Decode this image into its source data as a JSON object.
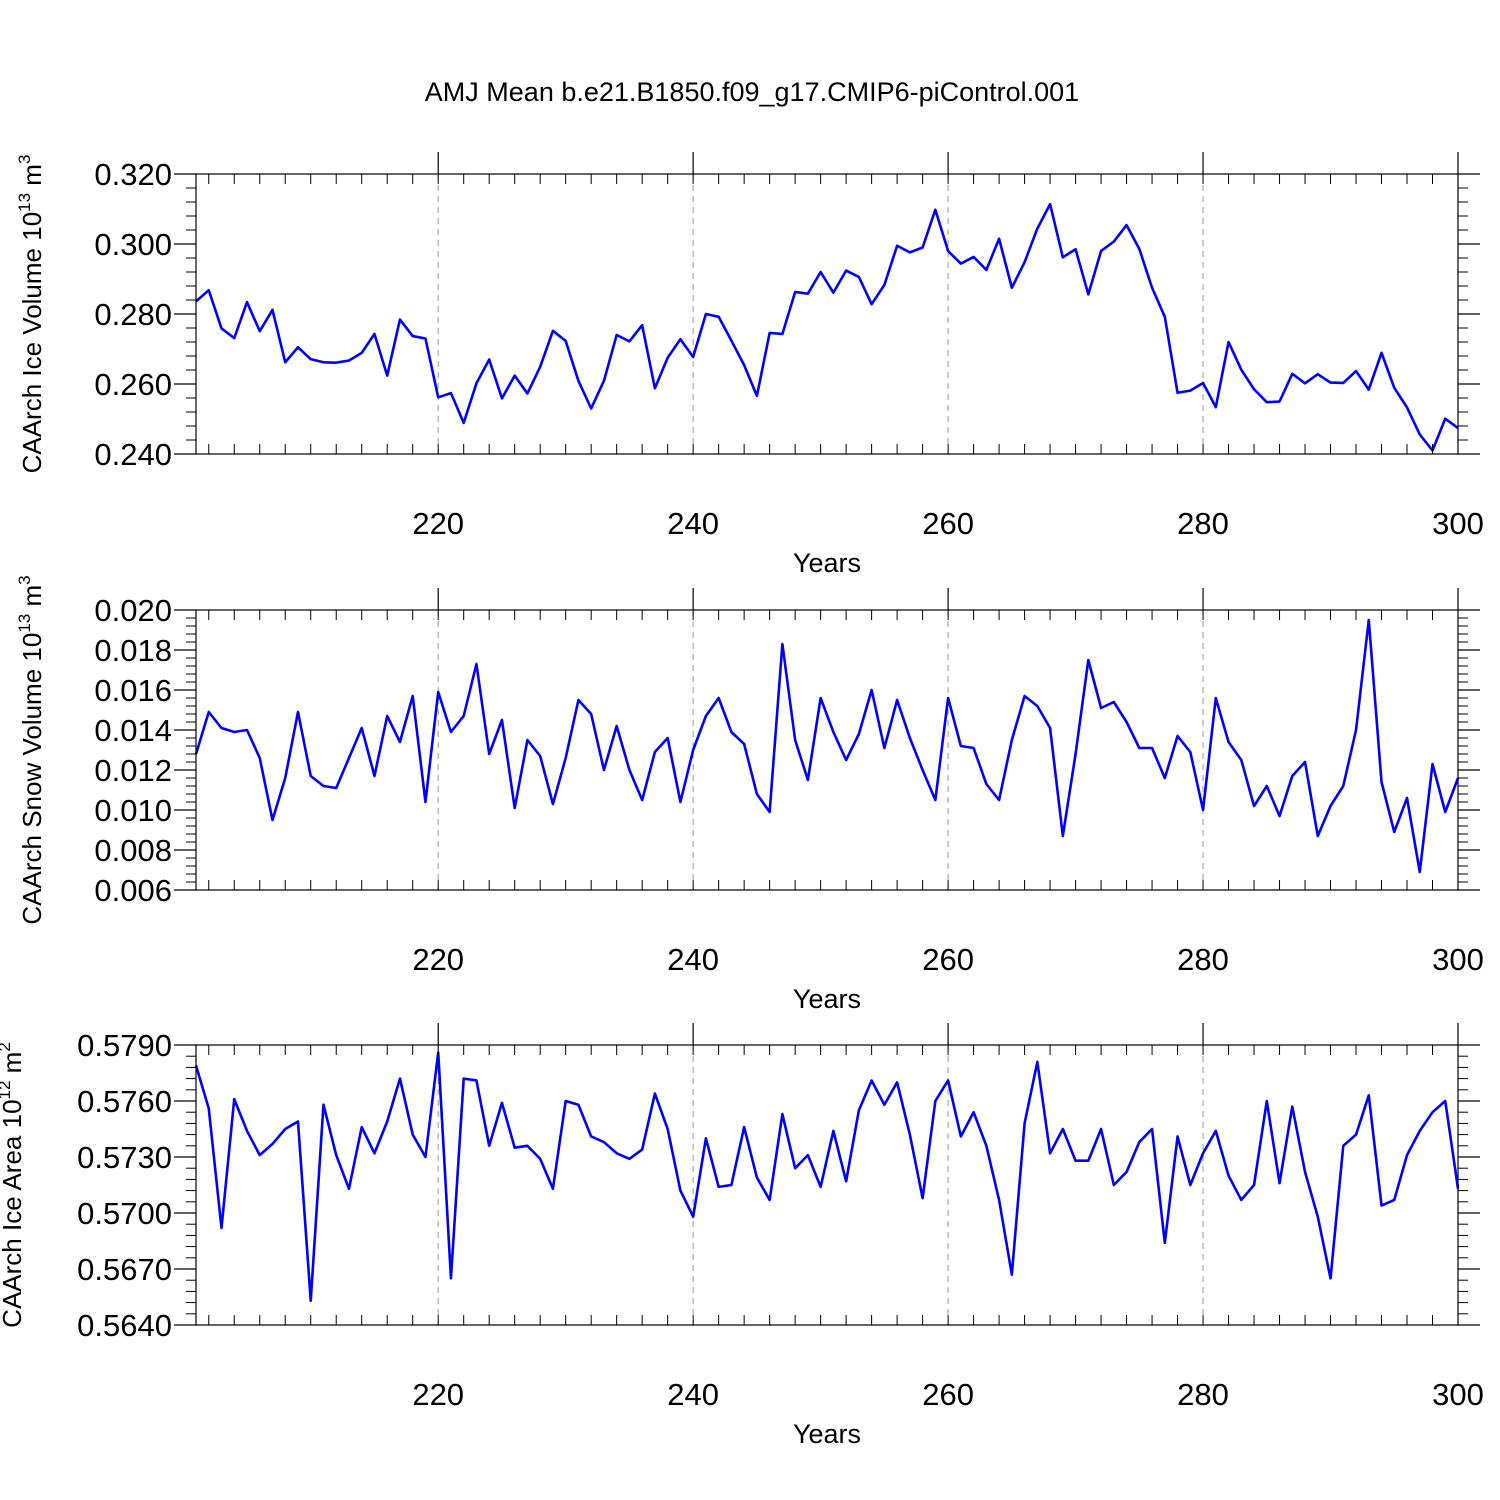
{
  "title": "AMJ Mean b.e21.B1850.f09_g17.CMIP6-piControl.001",
  "colors": {
    "series": "#0000ff",
    "axis": "#000000",
    "grid": "#999999",
    "background": "#ffffff"
  },
  "chart_data": [
    {
      "type": "line",
      "ylabel": "CAArch Ice Volume 10",
      "ylabel_exp": "13",
      "ylabel_unit": " m",
      "ylabel_unit_exp": "3",
      "xlabel": "Years",
      "xlim": [
        201,
        300
      ],
      "ylim": [
        0.24,
        0.32
      ],
      "x_ticks": [
        220,
        240,
        260,
        280,
        300
      ],
      "y_ticks": [
        0.24,
        0.26,
        0.28,
        0.3,
        0.32
      ],
      "y_tick_labels": [
        "0.240",
        "0.260",
        "0.280",
        "0.300",
        "0.320"
      ],
      "y_minor_step": 0.004,
      "x_minor_step": 2,
      "grid": "vertical dashed at major x ticks",
      "x_start": 201,
      "x_step": 1,
      "values": [
        0.2836,
        0.2868,
        0.2759,
        0.2731,
        0.2834,
        0.2751,
        0.2812,
        0.2662,
        0.2705,
        0.2671,
        0.2662,
        0.2661,
        0.2667,
        0.2689,
        0.2743,
        0.2624,
        0.2784,
        0.2737,
        0.273,
        0.2562,
        0.2574,
        0.2489,
        0.2602,
        0.267,
        0.2559,
        0.2624,
        0.2573,
        0.2649,
        0.2752,
        0.2723,
        0.2609,
        0.253,
        0.2609,
        0.274,
        0.2722,
        0.2768,
        0.2588,
        0.2675,
        0.2728,
        0.2677,
        0.28,
        0.2792,
        0.2724,
        0.2654,
        0.2566,
        0.2746,
        0.2743,
        0.2863,
        0.2858,
        0.292,
        0.2861,
        0.2924,
        0.2906,
        0.2828,
        0.2883,
        0.2995,
        0.2976,
        0.299,
        0.3098,
        0.298,
        0.2944,
        0.2963,
        0.2926,
        0.3015,
        0.2875,
        0.2948,
        0.3044,
        0.3114,
        0.2962,
        0.2985,
        0.2856,
        0.298,
        0.3007,
        0.3054,
        0.2986,
        0.2875,
        0.2792,
        0.2575,
        0.2581,
        0.2603,
        0.2534,
        0.272,
        0.2641,
        0.2585,
        0.2548,
        0.255,
        0.2629,
        0.2602,
        0.2628,
        0.2604,
        0.2603,
        0.2637,
        0.2584,
        0.2689,
        0.2589,
        0.2533,
        0.2456,
        0.241,
        0.2501,
        0.2474
      ]
    },
    {
      "type": "line",
      "ylabel": "CAArch Snow Volume 10",
      "ylabel_exp": "13",
      "ylabel_unit": " m",
      "ylabel_unit_exp": "3",
      "xlabel": "Years",
      "xlim": [
        201,
        300
      ],
      "ylim": [
        0.006,
        0.02
      ],
      "x_ticks": [
        220,
        240,
        260,
        280,
        300
      ],
      "y_ticks": [
        0.006,
        0.008,
        0.01,
        0.012,
        0.014,
        0.016,
        0.018,
        0.02
      ],
      "y_tick_labels": [
        "0.006",
        "0.008",
        "0.010",
        "0.012",
        "0.014",
        "0.016",
        "0.018",
        "0.020"
      ],
      "y_minor_step": 0.0004,
      "x_minor_step": 2,
      "grid": "vertical dashed at major x ticks",
      "x_start": 201,
      "x_step": 1,
      "values": [
        0.0128,
        0.0149,
        0.0141,
        0.0139,
        0.014,
        0.0126,
        0.0095,
        0.0116,
        0.0149,
        0.0117,
        0.0112,
        0.0111,
        0.0126,
        0.0141,
        0.0117,
        0.0147,
        0.0134,
        0.0157,
        0.0104,
        0.0159,
        0.0139,
        0.0147,
        0.0173,
        0.0128,
        0.0145,
        0.0101,
        0.0135,
        0.0127,
        0.0103,
        0.0126,
        0.0155,
        0.0148,
        0.012,
        0.0142,
        0.012,
        0.0105,
        0.0129,
        0.0136,
        0.0104,
        0.013,
        0.0147,
        0.0156,
        0.0139,
        0.0133,
        0.0108,
        0.0099,
        0.0183,
        0.0135,
        0.0115,
        0.0156,
        0.0139,
        0.0125,
        0.0138,
        0.016,
        0.0131,
        0.0155,
        0.0136,
        0.012,
        0.0105,
        0.0156,
        0.0132,
        0.0131,
        0.0113,
        0.0105,
        0.0135,
        0.0157,
        0.0152,
        0.0141,
        0.0087,
        0.0128,
        0.0175,
        0.0151,
        0.0154,
        0.0144,
        0.0131,
        0.0131,
        0.0116,
        0.0137,
        0.0129,
        0.01,
        0.0156,
        0.0134,
        0.0125,
        0.0102,
        0.0112,
        0.0097,
        0.0117,
        0.0124,
        0.0087,
        0.0102,
        0.0112,
        0.014,
        0.0195,
        0.0114,
        0.0089,
        0.0106,
        0.0069,
        0.0123,
        0.0099,
        0.0116
      ]
    },
    {
      "type": "line",
      "ylabel": "CAArch Ice Area 10",
      "ylabel_exp": "12",
      "ylabel_unit": " m",
      "ylabel_unit_exp": "2",
      "xlabel": "Years",
      "xlim": [
        201,
        300
      ],
      "ylim": [
        0.564,
        0.579
      ],
      "x_ticks": [
        220,
        240,
        260,
        280,
        300
      ],
      "y_ticks": [
        0.564,
        0.567,
        0.57,
        0.573,
        0.576,
        0.579
      ],
      "y_tick_labels": [
        "0.5640",
        "0.5670",
        "0.5700",
        "0.5730",
        "0.5760",
        "0.5790"
      ],
      "y_minor_step": 0.0006,
      "x_minor_step": 2,
      "grid": "vertical dashed at major x ticks",
      "x_start": 201,
      "x_step": 1,
      "values": [
        0.5779,
        0.5756,
        0.5692,
        0.5761,
        0.5744,
        0.5731,
        0.5737,
        0.5745,
        0.5749,
        0.5653,
        0.5758,
        0.5731,
        0.5713,
        0.5746,
        0.5732,
        0.5749,
        0.5772,
        0.5742,
        0.573,
        0.5786,
        0.5665,
        0.5772,
        0.5771,
        0.5736,
        0.5759,
        0.5735,
        0.5736,
        0.5729,
        0.5713,
        0.576,
        0.5758,
        0.5741,
        0.5738,
        0.5732,
        0.5729,
        0.5734,
        0.5764,
        0.5745,
        0.5712,
        0.5698,
        0.574,
        0.5714,
        0.5715,
        0.5746,
        0.5719,
        0.5707,
        0.5753,
        0.5724,
        0.5731,
        0.5714,
        0.5744,
        0.5717,
        0.5755,
        0.5771,
        0.5758,
        0.577,
        0.5742,
        0.5708,
        0.576,
        0.5771,
        0.5741,
        0.5754,
        0.5736,
        0.5707,
        0.5667,
        0.5748,
        0.5781,
        0.5732,
        0.5745,
        0.5728,
        0.5728,
        0.5745,
        0.5715,
        0.5722,
        0.5738,
        0.5745,
        0.5684,
        0.5741,
        0.5715,
        0.5732,
        0.5744,
        0.572,
        0.5707,
        0.5715,
        0.576,
        0.5716,
        0.5757,
        0.5722,
        0.5698,
        0.5665,
        0.5736,
        0.5742,
        0.5763,
        0.5704,
        0.5707,
        0.5731,
        0.5744,
        0.5754,
        0.576,
        0.5713
      ]
    }
  ]
}
